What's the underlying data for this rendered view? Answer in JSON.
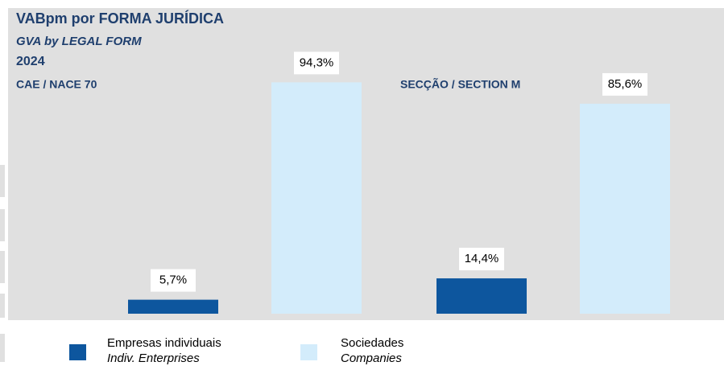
{
  "chart_data": {
    "type": "bar",
    "title": "VABpm por FORMA JURÍDICA",
    "subtitle": "GVA by LEGAL FORM",
    "year": "2024",
    "categories": [
      "CAE / NACE 70",
      "SECÇÃO / SECTION M"
    ],
    "series": [
      {
        "name": "Empresas individuais",
        "name_en": "Indiv. Enterprises",
        "color": "#0d569e",
        "values": [
          5.7,
          14.4
        ],
        "value_labels": [
          "5,7%",
          "14,4%"
        ]
      },
      {
        "name": "Sociedades",
        "name_en": "Companies",
        "color": "#d3ecfb",
        "values": [
          94.3,
          85.6
        ],
        "value_labels": [
          "94,3%",
          "85,6%"
        ]
      }
    ],
    "ylim": [
      0,
      100
    ]
  }
}
